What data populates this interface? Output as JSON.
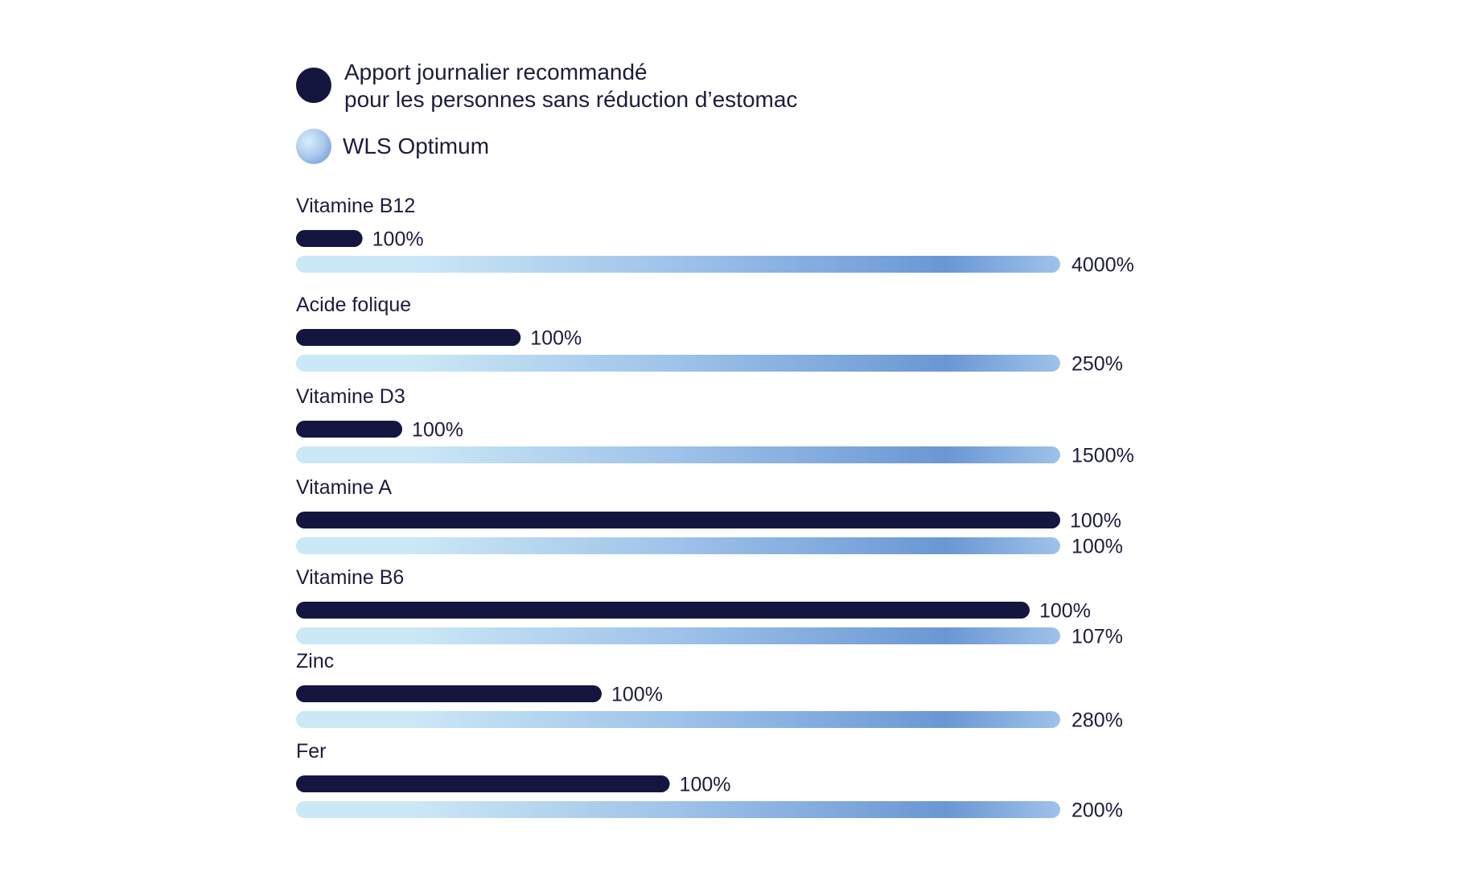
{
  "chart_data": {
    "type": "bar",
    "orientation": "horizontal",
    "grid": false,
    "legend_position": "top-left",
    "legend": [
      {
        "key": "ajr",
        "line1": "Apport journalier recommandé",
        "line2": "pour les personnes sans réduction d’estomac",
        "color": "#15163f"
      },
      {
        "key": "wls",
        "line1": "WLS Optimum",
        "color": "#8fb3e0"
      }
    ],
    "categories": [
      "Vitamine B12",
      "Acide folique",
      "Vitamine D3",
      "Vitamine A",
      "Vitamine B6",
      "Zinc",
      "Fer"
    ],
    "series": [
      {
        "key": "ajr",
        "name": "Apport journalier recommandé",
        "relative_length": [
          0.087,
          0.294,
          0.139,
          1.0,
          0.96,
          0.4,
          0.489
        ],
        "labels": [
          "100%",
          "100%",
          "100%",
          "100%",
          "100%",
          "100%",
          "100%"
        ]
      },
      {
        "key": "wls",
        "name": "WLS Optimum",
        "relative_length": [
          1,
          1,
          1,
          1,
          1,
          1,
          1
        ],
        "labels": [
          "4000%",
          "250%",
          "1500%",
          "100%",
          "107%",
          "280%",
          "200%"
        ]
      }
    ],
    "colors": {
      "dark_bar": "#15163f",
      "light_start": "#cbe8f6",
      "light_mid": "#9ec2e9",
      "light_end": "#6a97d4",
      "text": "#1c1c3c"
    }
  }
}
